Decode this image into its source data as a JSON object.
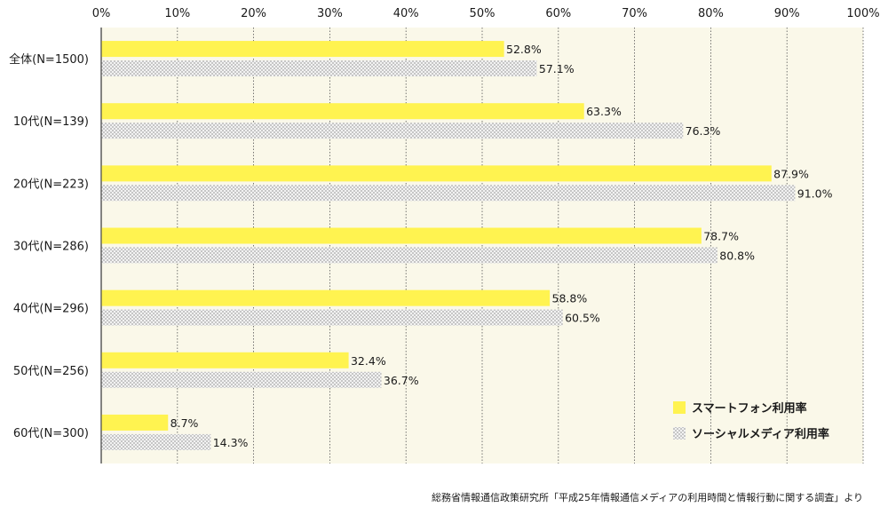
{
  "chart_data": {
    "type": "bar",
    "orientation": "horizontal",
    "categories": [
      "全体(N=1500)",
      "10代(N=139)",
      "20代(N=223)",
      "30代(N=286)",
      "40代(N=296)",
      "50代(N=256)",
      "60代(N=300)"
    ],
    "series": [
      {
        "name": "スマートフォン利用率",
        "values": [
          52.8,
          63.3,
          87.9,
          78.7,
          58.8,
          32.4,
          8.7
        ],
        "labels": [
          "52.8%",
          "63.3%",
          "87.9%",
          "78.7%",
          "58.8%",
          "32.4%",
          "8.7%"
        ],
        "color": "#fff350"
      },
      {
        "name": "ソーシャルメディア利用率",
        "values": [
          57.1,
          76.3,
          91.0,
          80.8,
          60.5,
          36.7,
          14.3
        ],
        "labels": [
          "57.1%",
          "76.3%",
          "91.0%",
          "80.8%",
          "60.5%",
          "36.7%",
          "14.3%"
        ],
        "color": "#d9d9d9",
        "pattern": "dotted"
      }
    ],
    "xlim": [
      0,
      100
    ],
    "ticks": [
      "0%",
      "10%",
      "20%",
      "30%",
      "40%",
      "50%",
      "60%",
      "70%",
      "80%",
      "90%",
      "100%"
    ],
    "grid": true,
    "legend_position": "bottom-right",
    "background_color": "#faf8e9"
  },
  "source": "総務省情報通信政策研究所「平成25年情報通信メディアの利用時間と情報行動に関する調査」より"
}
